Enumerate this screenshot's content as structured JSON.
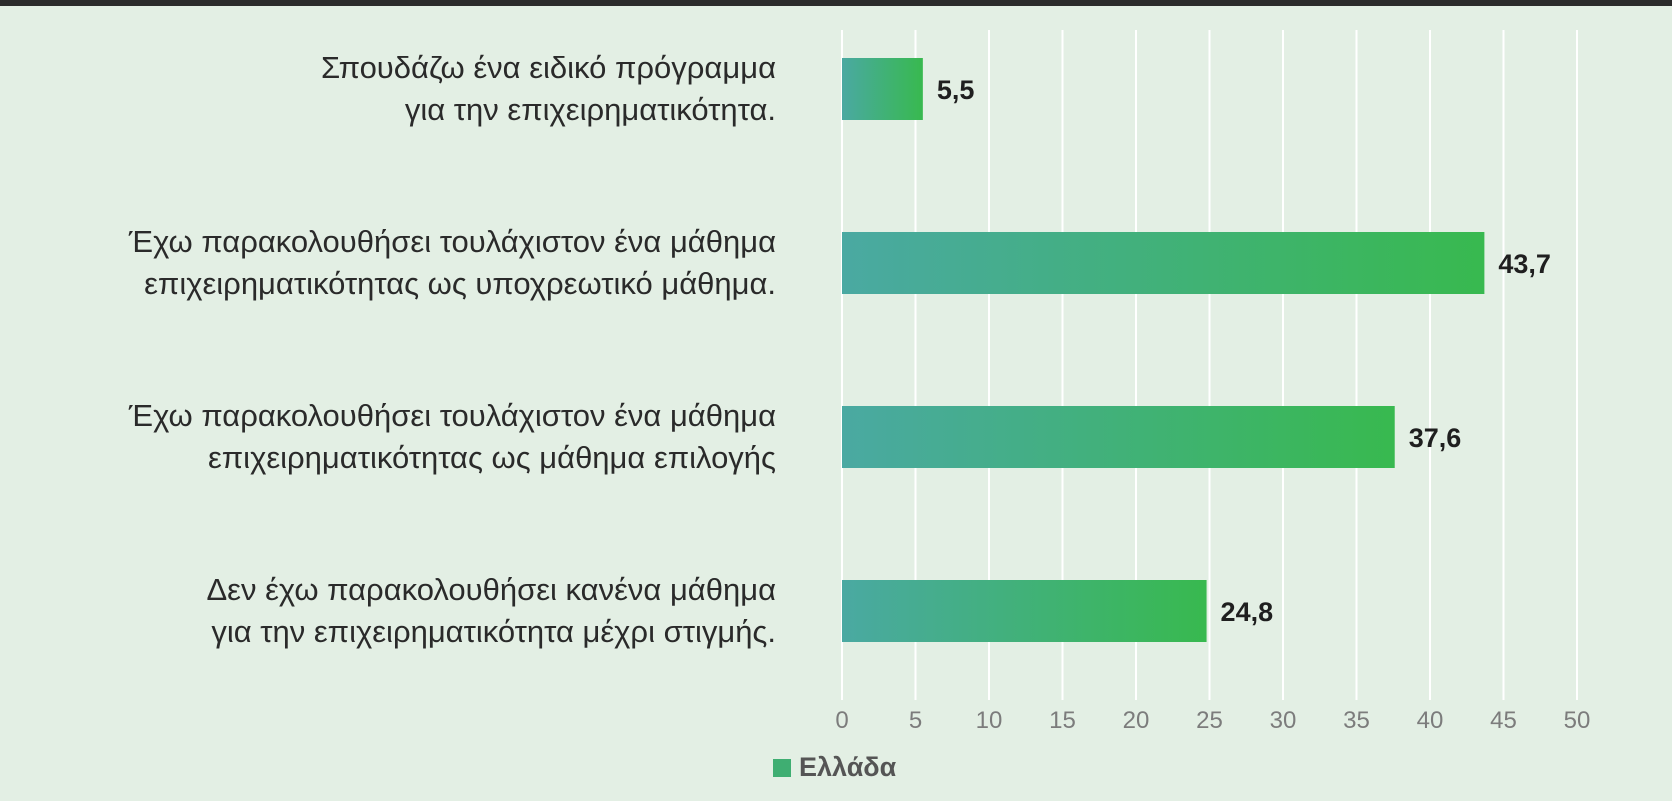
{
  "chart_data": {
    "type": "bar",
    "orientation": "horizontal",
    "categories": [
      [
        "Σπουδάζω ένα ειδικό πρόγραμμα",
        "για την επιχειρηματικότητα."
      ],
      [
        "Έχω παρακολουθήσει τουλάχιστον ένα μάθημα",
        "επιχειρηματικότητας ως υποχρεωτικό μάθημα."
      ],
      [
        "Έχω παρακολουθήσει τουλάχιστον ένα μάθημα",
        "επιχειρηματικότητας ως μάθημα επιλογής"
      ],
      [
        "Δεν έχω παρακολουθήσει κανένα μάθημα",
        "για την επιχειρηματικότητα μέχρι στιγμής."
      ]
    ],
    "series": [
      {
        "name": "Ελλάδα",
        "values": [
          5.5,
          43.7,
          37.6,
          24.8
        ],
        "value_labels": [
          "5,5",
          "43,7",
          "37,6",
          "24,8"
        ]
      }
    ],
    "xlim": [
      0,
      50
    ],
    "xticks": [
      0,
      5,
      10,
      15,
      20,
      25,
      30,
      35,
      40,
      45,
      50
    ],
    "grid": true,
    "legend_position": "bottom",
    "colors": {
      "bar_start": "#4aa9a2",
      "bar_end": "#38b94f",
      "legend_swatch": "#3fae72",
      "background": "#e3efe4",
      "gridline": "#ffffff"
    }
  },
  "legend": {
    "label": "Ελλάδα"
  }
}
